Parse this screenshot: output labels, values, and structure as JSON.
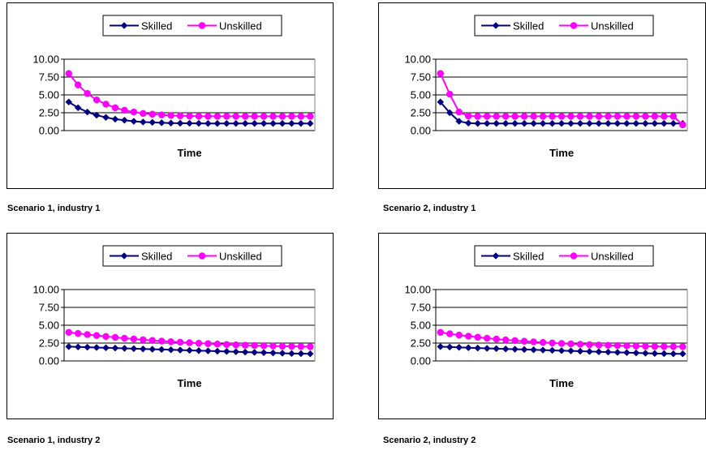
{
  "chart_data": [
    {
      "type": "line",
      "caption": "Scenario 1, industry 1",
      "xlabel": "Time",
      "ylabel": "",
      "ylim": [
        0,
        10
      ],
      "yticks": [
        "10.00",
        "7.50",
        "5.00",
        "2.50",
        "0.00"
      ],
      "grid": true,
      "legend": "top",
      "x": [
        1,
        2,
        3,
        4,
        5,
        6,
        7,
        8,
        9,
        10,
        11,
        12,
        13,
        14,
        15,
        16,
        17,
        18,
        19,
        20,
        21,
        22,
        23,
        24,
        25,
        26,
        27
      ],
      "series": [
        {
          "name": "Skilled",
          "color": "#000080",
          "marker": "diamond",
          "values": [
            4.0,
            3.2,
            2.6,
            2.15,
            1.85,
            1.6,
            1.45,
            1.3,
            1.2,
            1.15,
            1.1,
            1.05,
            1.03,
            1.02,
            1.01,
            1.0,
            1.0,
            1.0,
            1.0,
            1.0,
            1.0,
            1.0,
            1.0,
            1.0,
            1.0,
            1.0,
            1.0
          ]
        },
        {
          "name": "Unskilled",
          "color": "#ff00ff",
          "marker": "circle",
          "values": [
            8.0,
            6.4,
            5.2,
            4.3,
            3.7,
            3.2,
            2.85,
            2.6,
            2.4,
            2.3,
            2.2,
            2.12,
            2.07,
            2.04,
            2.02,
            2.01,
            2.0,
            2.0,
            2.0,
            2.0,
            2.0,
            2.0,
            2.0,
            2.0,
            2.0,
            2.0,
            2.0
          ]
        }
      ]
    },
    {
      "type": "line",
      "caption": "Scenario 2, industry 1",
      "xlabel": "Time",
      "ylabel": "",
      "ylim": [
        0,
        10
      ],
      "yticks": [
        "10.00",
        "7.50",
        "5.00",
        "2.50",
        "0.00"
      ],
      "grid": true,
      "legend": "top",
      "x": [
        1,
        2,
        3,
        4,
        5,
        6,
        7,
        8,
        9,
        10,
        11,
        12,
        13,
        14,
        15,
        16,
        17,
        18,
        19,
        20,
        21,
        22,
        23,
        24,
        25,
        26,
        27
      ],
      "series": [
        {
          "name": "Skilled",
          "color": "#000080",
          "marker": "diamond",
          "values": [
            4.0,
            2.5,
            1.3,
            1.05,
            1.0,
            1.0,
            1.0,
            1.0,
            1.0,
            1.0,
            1.0,
            1.0,
            1.0,
            1.0,
            1.0,
            1.0,
            1.0,
            1.0,
            1.0,
            1.0,
            1.0,
            1.0,
            1.0,
            1.0,
            1.0,
            1.0,
            1.0
          ]
        },
        {
          "name": "Unskilled",
          "color": "#ff00ff",
          "marker": "circle",
          "values": [
            8.0,
            5.1,
            2.6,
            2.05,
            2.0,
            2.0,
            2.0,
            2.0,
            2.0,
            2.0,
            2.0,
            2.0,
            2.0,
            2.0,
            2.0,
            2.0,
            2.0,
            2.0,
            2.0,
            2.0,
            2.0,
            2.0,
            2.0,
            2.0,
            2.0,
            2.0,
            0.8
          ]
        }
      ]
    },
    {
      "type": "line",
      "caption": "Scenario 1, industry 2",
      "xlabel": "Time",
      "ylabel": "",
      "ylim": [
        0,
        10
      ],
      "yticks": [
        "10.00",
        "7.50",
        "5.00",
        "2.50",
        "0.00"
      ],
      "grid": true,
      "legend": "top",
      "x": [
        1,
        2,
        3,
        4,
        5,
        6,
        7,
        8,
        9,
        10,
        11,
        12,
        13,
        14,
        15,
        16,
        17,
        18,
        19,
        20,
        21,
        22,
        23,
        24,
        25,
        26,
        27
      ],
      "series": [
        {
          "name": "Skilled",
          "color": "#000080",
          "marker": "diamond",
          "values": [
            2.0,
            1.96,
            1.92,
            1.88,
            1.84,
            1.8,
            1.76,
            1.72,
            1.68,
            1.64,
            1.6,
            1.56,
            1.52,
            1.48,
            1.44,
            1.4,
            1.36,
            1.32,
            1.28,
            1.24,
            1.2,
            1.16,
            1.12,
            1.08,
            1.04,
            1.02,
            1.0
          ]
        },
        {
          "name": "Unskilled",
          "color": "#ff00ff",
          "marker": "circle",
          "values": [
            4.0,
            3.85,
            3.7,
            3.56,
            3.43,
            3.3,
            3.18,
            3.07,
            2.97,
            2.87,
            2.78,
            2.7,
            2.62,
            2.55,
            2.48,
            2.42,
            2.36,
            2.3,
            2.25,
            2.2,
            2.16,
            2.12,
            2.09,
            2.06,
            2.04,
            2.02,
            2.0
          ]
        }
      ]
    },
    {
      "type": "line",
      "caption": "Scenario 2, industry 2",
      "xlabel": "Time",
      "ylabel": "",
      "ylim": [
        0,
        10
      ],
      "yticks": [
        "10.00",
        "7.50",
        "5.00",
        "2.50",
        "0.00"
      ],
      "grid": true,
      "legend": "top",
      "x": [
        1,
        2,
        3,
        4,
        5,
        6,
        7,
        8,
        9,
        10,
        11,
        12,
        13,
        14,
        15,
        16,
        17,
        18,
        19,
        20,
        21,
        22,
        23,
        24,
        25,
        26,
        27
      ],
      "series": [
        {
          "name": "Skilled",
          "color": "#000080",
          "marker": "diamond",
          "values": [
            2.0,
            1.95,
            1.9,
            1.85,
            1.8,
            1.76,
            1.72,
            1.68,
            1.64,
            1.6,
            1.56,
            1.52,
            1.48,
            1.44,
            1.4,
            1.36,
            1.32,
            1.28,
            1.24,
            1.2,
            1.16,
            1.12,
            1.08,
            1.04,
            1.02,
            1.0,
            1.0
          ]
        },
        {
          "name": "Unskilled",
          "color": "#ff00ff",
          "marker": "circle",
          "values": [
            4.0,
            3.8,
            3.62,
            3.46,
            3.32,
            3.18,
            3.06,
            2.95,
            2.85,
            2.76,
            2.67,
            2.59,
            2.52,
            2.45,
            2.39,
            2.33,
            2.28,
            2.23,
            2.19,
            2.15,
            2.11,
            2.08,
            2.05,
            2.03,
            2.01,
            2.0,
            2.0
          ]
        }
      ]
    }
  ]
}
